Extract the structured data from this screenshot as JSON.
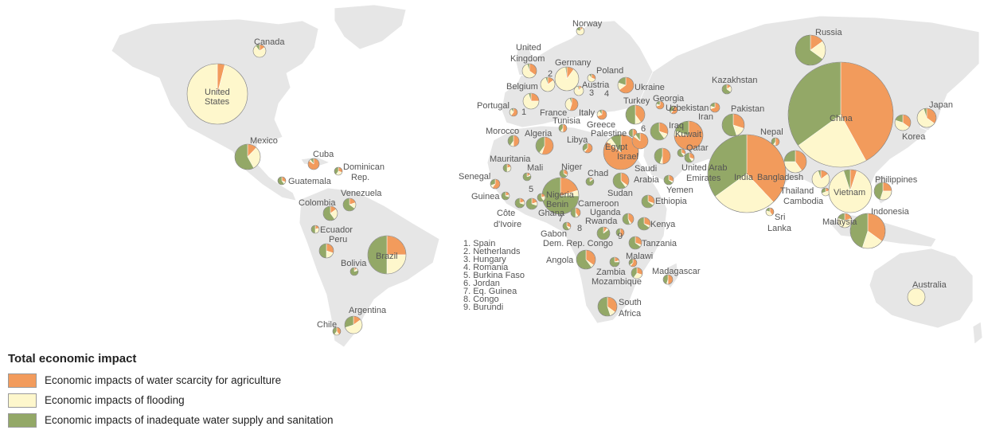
{
  "colors": {
    "scarcity": "#f29b5c",
    "flooding": "#fef7cc",
    "sanitation": "#93a867",
    "land": "#e6e6e6",
    "label": "#555555"
  },
  "legend": {
    "title": "Total economic impact",
    "items": [
      {
        "key": "scarcity",
        "label": "Economic impacts of water scarcity for agriculture"
      },
      {
        "key": "flooding",
        "label": "Economic impacts of flooding"
      },
      {
        "key": "sanitation",
        "label": "Economic impacts of inadequate water supply and sanitation"
      }
    ]
  },
  "numbered_list": [
    "1.  Spain",
    "2.  Netherlands",
    "3.  Hungary",
    "4.  Romania",
    "5.  Burkina Faso",
    "6.  Jordan",
    "7.  Eq. Guinea",
    "8.  Congo",
    "9.  Burundi"
  ],
  "map_numbers": [
    "1",
    "2",
    "3",
    "4",
    "5",
    "6",
    "7",
    "8",
    "9"
  ],
  "country_labels": [
    "Canada",
    "United States",
    "Mexico",
    "Cuba",
    "Dominican Rep.",
    "Guatemala",
    "Venezuela",
    "Colombia",
    "Ecuador",
    "Peru",
    "Brazil",
    "Bolivia",
    "Argentina",
    "Chile",
    "Norway",
    "United Kingdom",
    "Germany",
    "Poland",
    "Belgium",
    "Austria",
    "Ukraine",
    "Portugal",
    "France",
    "Italy",
    "Turkey",
    "Georgia",
    "Uzbekistan",
    "Kazakhstan",
    "Russia",
    "Morocco",
    "Tunisia",
    "Greece",
    "Palestine",
    "Algeria",
    "Libya",
    "Egypt",
    "Israel",
    "Iraq",
    "Kuwait",
    "Iran",
    "Pakistan",
    "Nepal",
    "China",
    "Japan",
    "Korea",
    "Mauritania",
    "Mali",
    "Niger",
    "Senegal",
    "Guinea",
    "Nigeria",
    "Benin",
    "Ghana",
    "Côte d'Ivoire",
    "Chad",
    "Cameroon",
    "Sudan",
    "Saudi Arabia",
    "Qatar",
    "United Arab Emirates",
    "Yemen",
    "Ethiopia",
    "India",
    "Bangladesh",
    "Thailand",
    "Cambodia",
    "Vietnam",
    "Philippines",
    "Sri Lanka",
    "Malaysia",
    "Indonesia",
    "Uganda",
    "Kenya",
    "Rwanda",
    "Gabon",
    "Dem. Rep. Congo",
    "Tanzania",
    "Angola",
    "Malawi",
    "Zambia",
    "Mozambique",
    "Madagascar",
    "South Africa",
    "Australia"
  ],
  "pies": [
    {
      "country": "Canada",
      "shares": [
        0.15,
        0.75,
        0.1
      ]
    },
    {
      "country": "United States",
      "shares": [
        0.04,
        0.96,
        0.0
      ]
    },
    {
      "country": "Mexico",
      "shares": [
        0.12,
        0.3,
        0.58
      ]
    },
    {
      "country": "Cuba",
      "shares": [
        0.85,
        0.05,
        0.1
      ]
    },
    {
      "country": "Dominican Rep.",
      "shares": [
        0.3,
        0.3,
        0.4
      ]
    },
    {
      "country": "Guatemala",
      "shares": [
        0.3,
        0.1,
        0.6
      ]
    },
    {
      "country": "Venezuela",
      "shares": [
        0.2,
        0.15,
        0.65
      ]
    },
    {
      "country": "Colombia",
      "shares": [
        0.15,
        0.25,
        0.6
      ]
    },
    {
      "country": "Ecuador",
      "shares": [
        0.2,
        0.3,
        0.5
      ]
    },
    {
      "country": "Peru",
      "shares": [
        0.3,
        0.2,
        0.5
      ]
    },
    {
      "country": "Brazil",
      "shares": [
        0.25,
        0.25,
        0.5
      ]
    },
    {
      "country": "Bolivia",
      "shares": [
        0.1,
        0.1,
        0.8
      ]
    },
    {
      "country": "Argentina",
      "shares": [
        0.15,
        0.55,
        0.3
      ]
    },
    {
      "country": "Chile",
      "shares": [
        0.4,
        0.2,
        0.4
      ]
    },
    {
      "country": "Norway",
      "shares": [
        0.1,
        0.7,
        0.2
      ]
    },
    {
      "country": "United Kingdom",
      "shares": [
        0.35,
        0.6,
        0.05
      ]
    },
    {
      "country": "Germany",
      "shares": [
        0.1,
        0.88,
        0.02
      ]
    },
    {
      "country": "Poland",
      "shares": [
        0.3,
        0.6,
        0.1
      ]
    },
    {
      "country": "Belgium",
      "shares": [
        0.15,
        0.8,
        0.05
      ]
    },
    {
      "country": "Austria",
      "shares": [
        0.1,
        0.85,
        0.05
      ]
    },
    {
      "country": "Ukraine",
      "shares": [
        0.65,
        0.15,
        0.2
      ]
    },
    {
      "country": "Portugal",
      "shares": [
        0.6,
        0.3,
        0.1
      ]
    },
    {
      "country": "France",
      "shares": [
        0.25,
        0.7,
        0.05
      ]
    },
    {
      "country": "Italy",
      "shares": [
        0.55,
        0.4,
        0.05
      ]
    },
    {
      "country": "Turkey",
      "shares": [
        0.4,
        0.1,
        0.5
      ]
    },
    {
      "country": "Georgia",
      "shares": [
        0.7,
        0.1,
        0.2
      ]
    },
    {
      "country": "Uzbekistan",
      "shares": [
        0.6,
        0.05,
        0.35
      ]
    },
    {
      "country": "Kazakhstan",
      "shares": [
        0.15,
        0.2,
        0.65
      ]
    },
    {
      "country": "Russia",
      "shares": [
        0.15,
        0.2,
        0.65
      ]
    },
    {
      "country": "Morocco",
      "shares": [
        0.5,
        0.1,
        0.4
      ]
    },
    {
      "country": "Tunisia",
      "shares": [
        0.5,
        0.1,
        0.4
      ]
    },
    {
      "country": "Greece",
      "shares": [
        0.7,
        0.2,
        0.1
      ]
    },
    {
      "country": "Palestine",
      "shares": [
        0.5,
        0.0,
        0.5
      ]
    },
    {
      "country": "Algeria",
      "shares": [
        0.55,
        0.05,
        0.4
      ]
    },
    {
      "country": "Libya",
      "shares": [
        0.6,
        0.05,
        0.35
      ]
    },
    {
      "country": "Egypt",
      "shares": [
        0.85,
        0.05,
        0.1
      ]
    },
    {
      "country": "Israel",
      "shares": [
        0.85,
        0.05,
        0.1
      ]
    },
    {
      "country": "Iraq",
      "shares": [
        0.3,
        0.1,
        0.6
      ]
    },
    {
      "country": "Kuwait",
      "shares": [
        0.75,
        0.05,
        0.2
      ]
    },
    {
      "country": "Iran",
      "shares": [
        0.7,
        0.1,
        0.2
      ]
    },
    {
      "country": "Pakistan",
      "shares": [
        0.3,
        0.15,
        0.55
      ]
    },
    {
      "country": "Nepal",
      "shares": [
        0.5,
        0.1,
        0.4
      ]
    },
    {
      "country": "China",
      "shares": [
        0.42,
        0.23,
        0.35
      ]
    },
    {
      "country": "Japan",
      "shares": [
        0.35,
        0.6,
        0.05
      ]
    },
    {
      "country": "Korea",
      "shares": [
        0.35,
        0.45,
        0.2
      ]
    },
    {
      "country": "Mauritania",
      "shares": [
        0.2,
        0.3,
        0.5
      ]
    },
    {
      "country": "Mali",
      "shares": [
        0.15,
        0.05,
        0.8
      ]
    },
    {
      "country": "Niger",
      "shares": [
        0.3,
        0.05,
        0.65
      ]
    },
    {
      "country": "Senegal",
      "shares": [
        0.6,
        0.1,
        0.3
      ]
    },
    {
      "country": "Guinea",
      "shares": [
        0.2,
        0.1,
        0.7
      ]
    },
    {
      "country": "Nigeria",
      "shares": [
        0.2,
        0.05,
        0.75
      ]
    },
    {
      "country": "Benin",
      "shares": [
        0.2,
        0.2,
        0.6
      ]
    },
    {
      "country": "Ghana",
      "shares": [
        0.2,
        0.1,
        0.7
      ]
    },
    {
      "country": "Côte d'Ivoire",
      "shares": [
        0.2,
        0.1,
        0.7
      ]
    },
    {
      "country": "Chad",
      "shares": [
        0.1,
        0.05,
        0.85
      ]
    },
    {
      "country": "Cameroon",
      "shares": [
        0.4,
        0.1,
        0.5
      ]
    },
    {
      "country": "Sudan",
      "shares": [
        0.35,
        0.05,
        0.6
      ]
    },
    {
      "country": "Saudi Arabia",
      "shares": [
        0.5,
        0.05,
        0.45
      ]
    },
    {
      "country": "Qatar",
      "shares": [
        0.3,
        0.1,
        0.6
      ]
    },
    {
      "country": "United Arab Emirates",
      "shares": [
        0.3,
        0.1,
        0.6
      ]
    },
    {
      "country": "Yemen",
      "shares": [
        0.3,
        0.05,
        0.65
      ]
    },
    {
      "country": "Ethiopia",
      "shares": [
        0.3,
        0.05,
        0.65
      ]
    },
    {
      "country": "India",
      "shares": [
        0.38,
        0.27,
        0.35
      ]
    },
    {
      "country": "Bangladesh",
      "shares": [
        0.4,
        0.35,
        0.25
      ]
    },
    {
      "country": "Thailand",
      "shares": [
        0.15,
        0.8,
        0.05
      ]
    },
    {
      "country": "Cambodia",
      "shares": [
        0.2,
        0.5,
        0.3
      ]
    },
    {
      "country": "Vietnam",
      "shares": [
        0.05,
        0.9,
        0.05
      ]
    },
    {
      "country": "Philippines",
      "shares": [
        0.25,
        0.3,
        0.45
      ]
    },
    {
      "country": "Sri Lanka",
      "shares": [
        0.4,
        0.4,
        0.2
      ]
    },
    {
      "country": "Malaysia",
      "shares": [
        0.2,
        0.6,
        0.2
      ]
    },
    {
      "country": "Indonesia",
      "shares": [
        0.35,
        0.2,
        0.45
      ]
    },
    {
      "country": "Uganda",
      "shares": [
        0.4,
        0.05,
        0.55
      ]
    },
    {
      "country": "Kenya",
      "shares": [
        0.3,
        0.05,
        0.65
      ]
    },
    {
      "country": "Rwanda",
      "shares": [
        0.5,
        0.05,
        0.45
      ]
    },
    {
      "country": "Gabon",
      "shares": [
        0.3,
        0.1,
        0.6
      ]
    },
    {
      "country": "Dem. Rep. Congo",
      "shares": [
        0.1,
        0.05,
        0.85
      ]
    },
    {
      "country": "Tanzania",
      "shares": [
        0.3,
        0.05,
        0.65
      ]
    },
    {
      "country": "Angola",
      "shares": [
        0.35,
        0.05,
        0.6
      ]
    },
    {
      "country": "Malawi",
      "shares": [
        0.6,
        0.05,
        0.35
      ]
    },
    {
      "country": "Zambia",
      "shares": [
        0.2,
        0.05,
        0.75
      ]
    },
    {
      "country": "Mozambique",
      "shares": [
        0.3,
        0.3,
        0.4
      ]
    },
    {
      "country": "Madagascar",
      "shares": [
        0.5,
        0.05,
        0.45
      ]
    },
    {
      "country": "South Africa",
      "shares": [
        0.35,
        0.1,
        0.55
      ]
    },
    {
      "country": "Australia",
      "shares": [
        0.0,
        1.0,
        0.0
      ]
    }
  ]
}
